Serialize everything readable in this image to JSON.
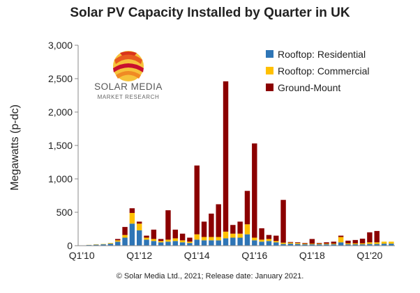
{
  "chart_data": {
    "type": "bar",
    "stacked": true,
    "title": "Solar PV Capacity Installed by Quarter in UK",
    "ylabel": "Megawatts (p-dc)",
    "xlabel": "",
    "ylim": [
      0,
      3000
    ],
    "y_ticks": [
      "0",
      "500",
      "1,000",
      "1,500",
      "2,000",
      "2,500",
      "3,000"
    ],
    "y_tick_values": [
      0,
      500,
      1000,
      1500,
      2000,
      2500,
      3000
    ],
    "x_tick_labels": [
      "Q1'10",
      "Q1'12",
      "Q1'14",
      "Q1'16",
      "Q1'18",
      "Q1'20"
    ],
    "x_tick_index": [
      0,
      8,
      16,
      24,
      32,
      40
    ],
    "categories": [
      "Q1'10",
      "Q2'10",
      "Q3'10",
      "Q4'10",
      "Q1'11",
      "Q2'11",
      "Q3'11",
      "Q4'11",
      "Q1'12",
      "Q2'12",
      "Q3'12",
      "Q4'12",
      "Q1'13",
      "Q2'13",
      "Q3'13",
      "Q4'13",
      "Q1'14",
      "Q2'14",
      "Q3'14",
      "Q4'14",
      "Q1'15",
      "Q2'15",
      "Q3'15",
      "Q4'15",
      "Q1'16",
      "Q2'16",
      "Q3'16",
      "Q4'16",
      "Q1'17",
      "Q2'17",
      "Q3'17",
      "Q4'17",
      "Q1'18",
      "Q2'18",
      "Q3'18",
      "Q4'18",
      "Q1'19",
      "Q2'19",
      "Q3'19",
      "Q4'19",
      "Q1'20",
      "Q2'20",
      "Q3'20",
      "Q4'20"
    ],
    "series": [
      {
        "name": "Rooftop:  Residential",
        "color": "#2e75b6",
        "values": [
          5,
          10,
          15,
          20,
          30,
          60,
          120,
          330,
          230,
          90,
          70,
          50,
          60,
          70,
          50,
          40,
          90,
          80,
          80,
          80,
          110,
          120,
          120,
          170,
          80,
          60,
          70,
          50,
          25,
          30,
          25,
          20,
          20,
          20,
          20,
          20,
          50,
          20,
          20,
          20,
          25,
          25,
          30,
          30
        ]
      },
      {
        "name": "Rooftop:  Commercial",
        "color": "#ffc000",
        "values": [
          0,
          2,
          5,
          5,
          10,
          20,
          40,
          160,
          100,
          30,
          30,
          20,
          30,
          40,
          30,
          20,
          80,
          50,
          50,
          50,
          100,
          60,
          60,
          150,
          40,
          30,
          30,
          20,
          20,
          15,
          15,
          10,
          10,
          10,
          10,
          10,
          80,
          15,
          15,
          15,
          25,
          25,
          30,
          30
        ]
      },
      {
        "name": "Ground-Mount",
        "color": "#8b0000",
        "values": [
          0,
          0,
          0,
          0,
          0,
          20,
          120,
          70,
          30,
          30,
          140,
          30,
          440,
          130,
          100,
          60,
          1030,
          230,
          350,
          490,
          2250,
          130,
          180,
          500,
          1410,
          170,
          60,
          80,
          640,
          10,
          10,
          10,
          70,
          10,
          20,
          30,
          20,
          40,
          50,
          70,
          150,
          170,
          0,
          0
        ]
      }
    ],
    "legend_position": "top-right",
    "grid": false,
    "annotation": "© Solar Media Ltd., 2021; Release date: January 2021."
  },
  "logo": {
    "line1": "SOLAR MEDIA",
    "line2": "MARKET RESEARCH"
  }
}
